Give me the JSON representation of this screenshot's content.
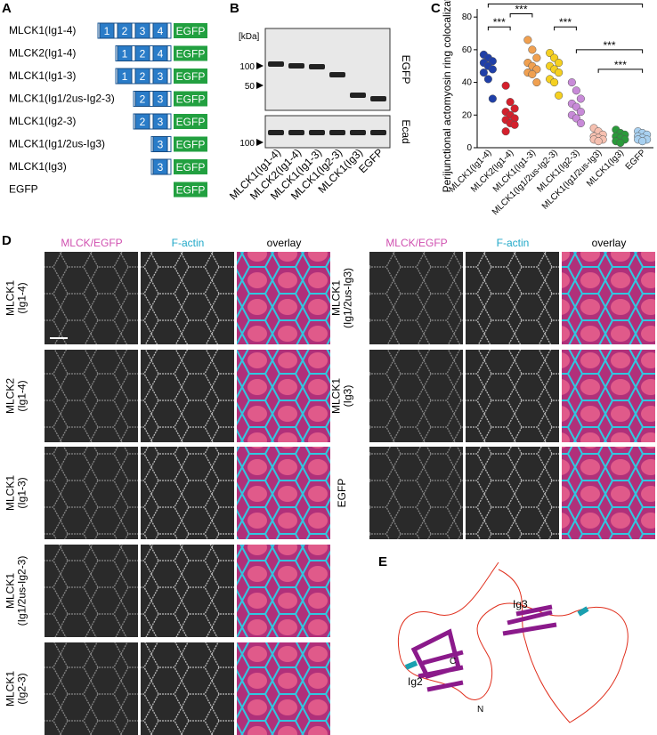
{
  "panel_a": {
    "label": "A",
    "tag": "EGFP",
    "constructs": [
      {
        "name": "MLCK1(Ig1-4)",
        "domains": [
          "1",
          "2",
          "3",
          "4"
        ]
      },
      {
        "name": "MLCK2(Ig1-4)",
        "domains": [
          "1",
          "2",
          "4"
        ]
      },
      {
        "name": "MLCK1(Ig1-3)",
        "domains": [
          "1",
          "2",
          "3"
        ]
      },
      {
        "name": "MLCK1(Ig1/2us-Ig2-3)",
        "domains": [
          "2",
          "3"
        ]
      },
      {
        "name": "MLCK1(Ig2-3)",
        "domains": [
          "2",
          "3"
        ]
      },
      {
        "name": "MLCK1(Ig1/2us-Ig3)",
        "domains": [
          "3"
        ]
      },
      {
        "name": "MLCK1(Ig3)",
        "domains": [
          "3"
        ]
      },
      {
        "name": "EGFP",
        "domains": []
      }
    ]
  },
  "panel_b": {
    "label": "B",
    "unit": "[kDa]",
    "markers": [
      {
        "label": "100",
        "blot": 0
      },
      {
        "label": "50",
        "blot": 0
      },
      {
        "label": "100",
        "blot": 1
      }
    ],
    "blots": [
      "EGFP",
      "Ecad"
    ],
    "lanes": [
      "MLCK1(Ig1-4)",
      "MLCK2(Ig1-4)",
      "MLCK1(Ig1-3)",
      "MLCK1(Ig2-3)",
      "MLCK1(Ig3)",
      "EGFP"
    ]
  },
  "chart_data": {
    "type": "dot",
    "label": "C",
    "ylabel": "Perijunctional actomyosin ring colocalization (%)",
    "categories": [
      "MLCK1(Ig1-4)",
      "MLCK2(Ig1-4)",
      "MLCK1(Ig1-3)",
      "MLCK1(Ig1/2us-Ig2-3)",
      "MLCK1(Ig2-3)",
      "MLCK1(Ig1/2us-Ig3)",
      "MLCK1(Ig3)",
      "EGFP"
    ],
    "colors": [
      "#1f3fa8",
      "#d4202c",
      "#f0a050",
      "#f5d020",
      "#c88ad8",
      "#f6c0b0",
      "#2a9a3a",
      "#a8d0f0"
    ],
    "values": [
      [
        57,
        55,
        53,
        52,
        50,
        48,
        46,
        42,
        30
      ],
      [
        38,
        28,
        24,
        22,
        20,
        18,
        17,
        15,
        14,
        10
      ],
      [
        66,
        60,
        55,
        52,
        50,
        48,
        46,
        45,
        40
      ],
      [
        58,
        55,
        52,
        50,
        48,
        46,
        42,
        40,
        32
      ],
      [
        40,
        35,
        30,
        27,
        25,
        22,
        20,
        18,
        15
      ],
      [
        12,
        10,
        8,
        7,
        6,
        5,
        5,
        4
      ],
      [
        11,
        9,
        8,
        7,
        6,
        5,
        4,
        3
      ],
      [
        10,
        9,
        8,
        7,
        6,
        5,
        5,
        4
      ]
    ],
    "ylim": [
      0,
      85
    ],
    "yticks": [
      0,
      20,
      40,
      60,
      80
    ],
    "significance": [
      {
        "groups": [
          0,
          1
        ],
        "text": "***"
      },
      {
        "groups": [
          1,
          2
        ],
        "text": "***"
      },
      {
        "groups": [
          3,
          4
        ],
        "text": "***"
      },
      {
        "groups": [
          4,
          7
        ],
        "text": "***"
      },
      {
        "groups": [
          5,
          7
        ],
        "text": "***"
      },
      {
        "groups": [
          0,
          7
        ]
      }
    ]
  },
  "panel_d": {
    "label": "D",
    "headers": [
      "MLCK/EGFP",
      "F-actin",
      "overlay"
    ],
    "left_rows": [
      [
        "MLCK1",
        "(Ig1-4)"
      ],
      [
        "MLCK2",
        "(Ig1-4)"
      ],
      [
        "MLCK1",
        "(Ig1-3)"
      ],
      [
        "MLCK1",
        "(Ig1/2us-Ig2-3)"
      ],
      [
        "MLCK1",
        "(Ig2-3)"
      ]
    ],
    "right_rows": [
      [
        "MLCK1",
        "(Ig1/2us-Ig3)"
      ],
      [
        "MLCK1",
        "(Ig3)"
      ],
      [
        "EGFP"
      ]
    ]
  },
  "panel_e": {
    "label": "E",
    "labels": [
      "Ig2",
      "Ig3",
      "C",
      "N"
    ]
  }
}
